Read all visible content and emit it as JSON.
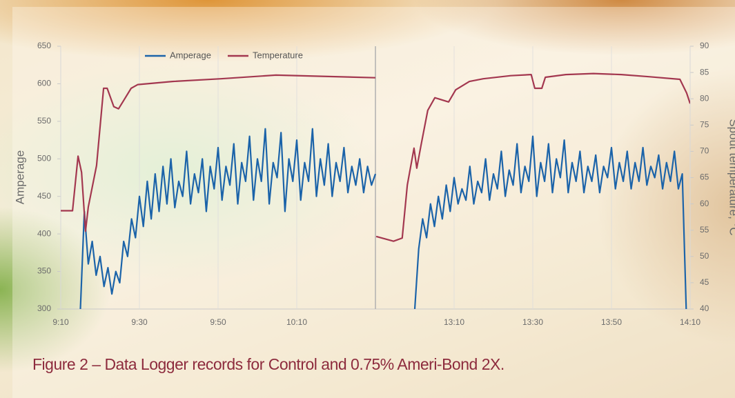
{
  "chart_data": {
    "type": "line",
    "caption": "Figure 2 – Data Logger records for Control and 0.75% Ameri-Bond 2X.",
    "ylabel": "Amperage",
    "y2label": "Spout temperature, °C",
    "xlim": [
      0,
      160
    ],
    "ylim": [
      300,
      650
    ],
    "y2lim": [
      40,
      90
    ],
    "axis_break": 80,
    "xticks": [
      {
        "value": 0,
        "label": "9:10"
      },
      {
        "value": 20,
        "label": "9:30"
      },
      {
        "value": 40,
        "label": "9:50"
      },
      {
        "value": 60,
        "label": "10:10"
      },
      {
        "value": 100,
        "label": "13:10"
      },
      {
        "value": 120,
        "label": "13:30"
      },
      {
        "value": 140,
        "label": "13:50"
      },
      {
        "value": 160,
        "label": "14:10"
      }
    ],
    "yticks": [
      300,
      350,
      400,
      450,
      500,
      550,
      600,
      650
    ],
    "y2ticks": [
      40,
      45,
      50,
      55,
      60,
      65,
      70,
      75,
      80,
      85,
      90
    ],
    "grid": true,
    "legend": "top",
    "series": [
      {
        "name": "Amperage",
        "color": "#1b63a9",
        "x": [
          5,
          6,
          7,
          8,
          9,
          10,
          11,
          12,
          13,
          14,
          15,
          16,
          17,
          18,
          19,
          20,
          21,
          22,
          23,
          24,
          25,
          26,
          27,
          28,
          29,
          30,
          31,
          32,
          33,
          34,
          35,
          36,
          37,
          38,
          39,
          40,
          41,
          42,
          43,
          44,
          45,
          46,
          47,
          48,
          49,
          50,
          51,
          52,
          53,
          54,
          55,
          56,
          57,
          58,
          59,
          60,
          61,
          62,
          63,
          64,
          65,
          66,
          67,
          68,
          69,
          70,
          71,
          72,
          73,
          74,
          75,
          76,
          77,
          78,
          79,
          80,
          85,
          90,
          91,
          92,
          93,
          94,
          95,
          96,
          97,
          98,
          99,
          100,
          101,
          102,
          103,
          104,
          105,
          106,
          107,
          108,
          109,
          110,
          111,
          112,
          113,
          114,
          115,
          116,
          117,
          118,
          119,
          120,
          121,
          122,
          123,
          124,
          125,
          126,
          127,
          128,
          129,
          130,
          131,
          132,
          133,
          134,
          135,
          136,
          137,
          138,
          139,
          140,
          141,
          142,
          143,
          144,
          145,
          146,
          147,
          148,
          149,
          150,
          151,
          152,
          153,
          154,
          155,
          156,
          157,
          158,
          159
        ],
        "values": [
          300,
          430,
          360,
          390,
          345,
          370,
          330,
          355,
          320,
          350,
          335,
          390,
          370,
          420,
          395,
          450,
          410,
          470,
          420,
          480,
          430,
          490,
          440,
          500,
          435,
          470,
          450,
          510,
          440,
          480,
          455,
          500,
          430,
          490,
          460,
          515,
          445,
          490,
          465,
          520,
          440,
          495,
          470,
          530,
          445,
          500,
          470,
          540,
          440,
          495,
          475,
          535,
          430,
          500,
          470,
          525,
          445,
          495,
          470,
          540,
          450,
          500,
          465,
          520,
          450,
          495,
          470,
          515,
          455,
          490,
          465,
          500,
          455,
          490,
          465,
          480,
          null,
          300,
          380,
          420,
          395,
          440,
          410,
          450,
          420,
          465,
          430,
          475,
          440,
          460,
          445,
          490,
          440,
          470,
          455,
          500,
          445,
          480,
          460,
          510,
          450,
          485,
          465,
          520,
          455,
          490,
          470,
          530,
          450,
          495,
          470,
          520,
          455,
          500,
          475,
          525,
          455,
          495,
          470,
          510,
          455,
          490,
          470,
          505,
          455,
          490,
          475,
          515,
          460,
          495,
          470,
          510,
          460,
          495,
          470,
          515,
          465,
          490,
          475,
          505,
          460,
          495,
          470,
          510,
          460,
          480,
          300
        ]
      },
      {
        "name": "Temperature",
        "color": "#a3374f",
        "axis": "y2",
        "x": [
          0,
          3,
          4.4,
          5.3,
          6.3,
          7,
          9.1,
          10.9,
          11.8,
          13.5,
          14.7,
          16.1,
          17.9,
          19.6,
          28.4,
          40.7,
          54.7,
          80,
          80.1,
          80.2,
          84.6,
          86.8,
          88.1,
          89.8,
          90.5,
          91.6,
          93.3,
          95.1,
          98.6,
          100.4,
          103.9,
          107.4,
          114.4,
          119.6,
          120.5,
          122.3,
          123.2,
          128.4,
          135.4,
          142.5,
          149.5,
          157.4,
          159.1,
          160
        ],
        "values": [
          58.7,
          58.7,
          69.1,
          66,
          54.8,
          59.4,
          67.3,
          82,
          82,
          78.5,
          78.1,
          79.8,
          82,
          82.7,
          83.3,
          83.8,
          84.5,
          84,
          null,
          53.8,
          52.9,
          53.5,
          63.6,
          70.6,
          66.8,
          71.2,
          77.8,
          80.2,
          79.4,
          81.7,
          83.3,
          83.8,
          84.4,
          84.6,
          82,
          82,
          84.1,
          84.6,
          84.8,
          84.6,
          84.2,
          83.7,
          81.1,
          79.1
        ]
      }
    ]
  }
}
